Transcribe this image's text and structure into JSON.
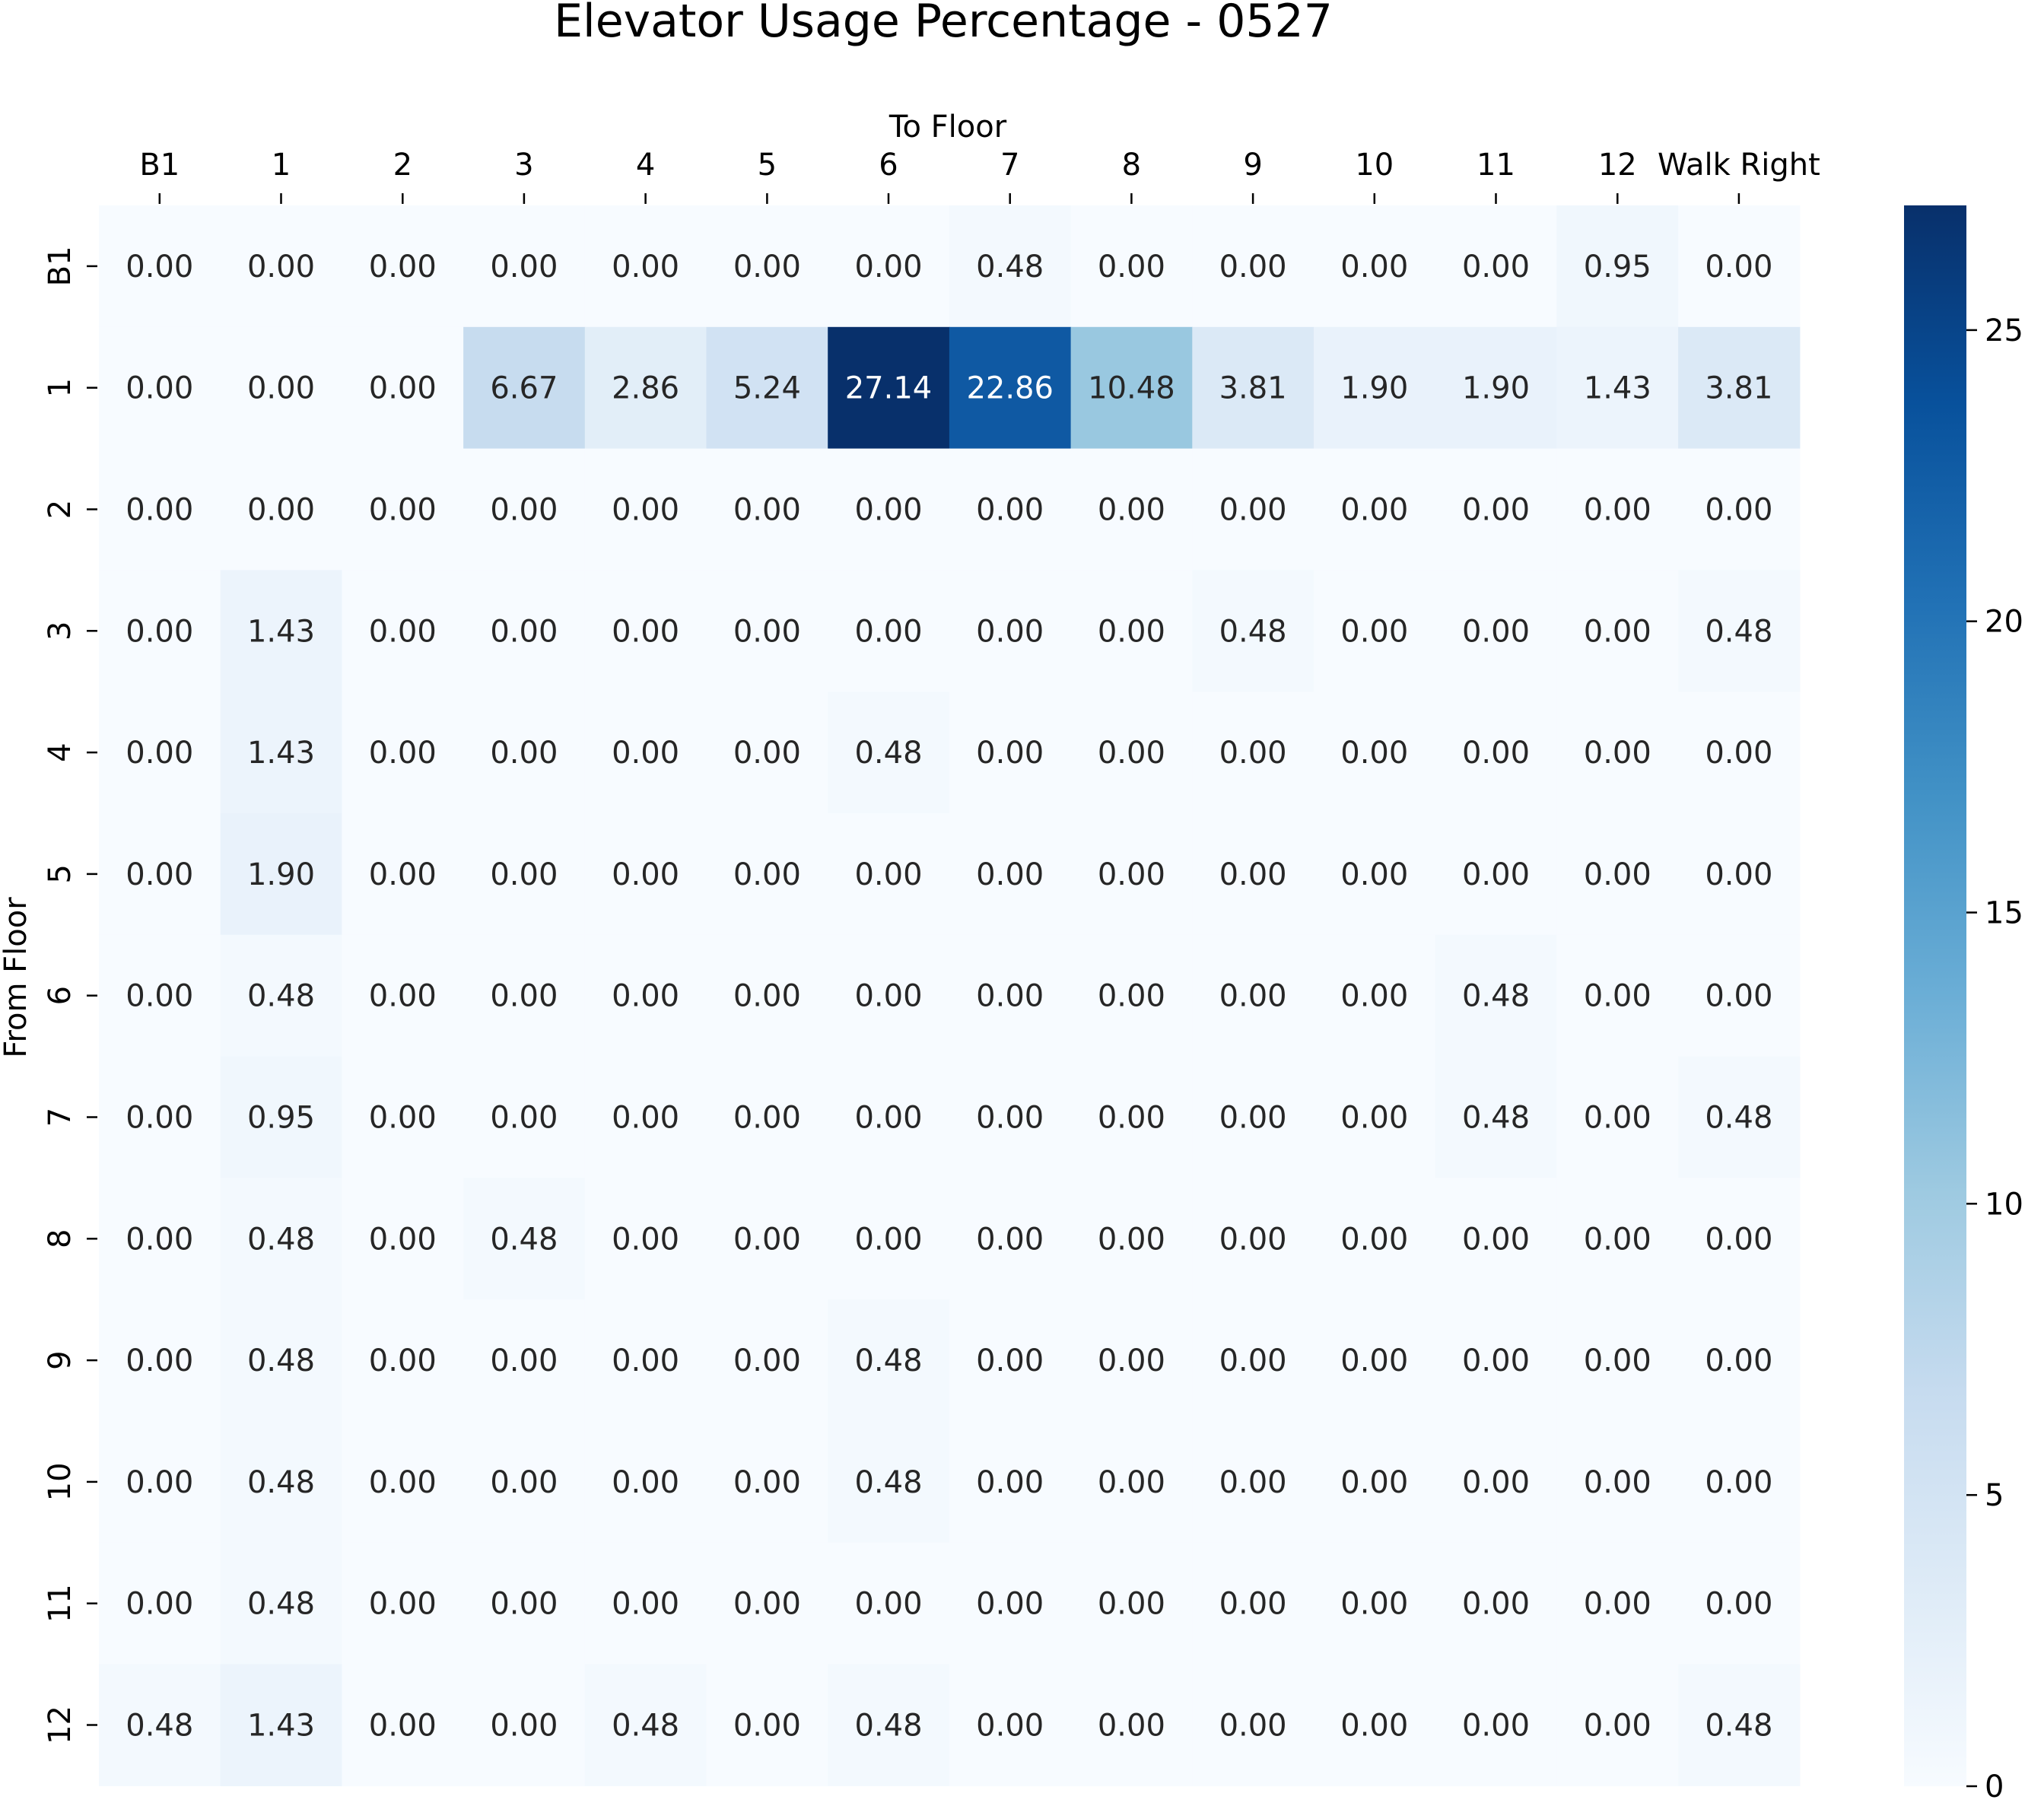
{
  "chart_data": {
    "type": "heatmap",
    "title": "Elevator Usage Percentage - 0527",
    "xlabel": "To Floor",
    "ylabel": "From Floor",
    "x_categories": [
      "B1",
      "1",
      "2",
      "3",
      "4",
      "5",
      "6",
      "7",
      "8",
      "9",
      "10",
      "11",
      "12",
      "Walk Right"
    ],
    "y_categories": [
      "B1",
      "1",
      "2",
      "3",
      "4",
      "5",
      "6",
      "7",
      "8",
      "9",
      "10",
      "11",
      "12"
    ],
    "values": [
      [
        0.0,
        0.0,
        0.0,
        0.0,
        0.0,
        0.0,
        0.0,
        0.48,
        0.0,
        0.0,
        0.0,
        0.0,
        0.95,
        0.0
      ],
      [
        0.0,
        0.0,
        0.0,
        6.67,
        2.86,
        5.24,
        27.14,
        22.86,
        10.48,
        3.81,
        1.9,
        1.9,
        1.43,
        3.81
      ],
      [
        0.0,
        0.0,
        0.0,
        0.0,
        0.0,
        0.0,
        0.0,
        0.0,
        0.0,
        0.0,
        0.0,
        0.0,
        0.0,
        0.0
      ],
      [
        0.0,
        1.43,
        0.0,
        0.0,
        0.0,
        0.0,
        0.0,
        0.0,
        0.0,
        0.48,
        0.0,
        0.0,
        0.0,
        0.48
      ],
      [
        0.0,
        1.43,
        0.0,
        0.0,
        0.0,
        0.0,
        0.48,
        0.0,
        0.0,
        0.0,
        0.0,
        0.0,
        0.0,
        0.0
      ],
      [
        0.0,
        1.9,
        0.0,
        0.0,
        0.0,
        0.0,
        0.0,
        0.0,
        0.0,
        0.0,
        0.0,
        0.0,
        0.0,
        0.0
      ],
      [
        0.0,
        0.48,
        0.0,
        0.0,
        0.0,
        0.0,
        0.0,
        0.0,
        0.0,
        0.0,
        0.0,
        0.48,
        0.0,
        0.0
      ],
      [
        0.0,
        0.95,
        0.0,
        0.0,
        0.0,
        0.0,
        0.0,
        0.0,
        0.0,
        0.0,
        0.0,
        0.48,
        0.0,
        0.48
      ],
      [
        0.0,
        0.48,
        0.0,
        0.48,
        0.0,
        0.0,
        0.0,
        0.0,
        0.0,
        0.0,
        0.0,
        0.0,
        0.0,
        0.0
      ],
      [
        0.0,
        0.48,
        0.0,
        0.0,
        0.0,
        0.0,
        0.48,
        0.0,
        0.0,
        0.0,
        0.0,
        0.0,
        0.0,
        0.0
      ],
      [
        0.0,
        0.48,
        0.0,
        0.0,
        0.0,
        0.0,
        0.48,
        0.0,
        0.0,
        0.0,
        0.0,
        0.0,
        0.0,
        0.0
      ],
      [
        0.0,
        0.48,
        0.0,
        0.0,
        0.0,
        0.0,
        0.0,
        0.0,
        0.0,
        0.0,
        0.0,
        0.0,
        0.0,
        0.0
      ],
      [
        0.48,
        1.43,
        0.0,
        0.0,
        0.48,
        0.0,
        0.48,
        0.0,
        0.0,
        0.0,
        0.0,
        0.0,
        0.0,
        0.48
      ]
    ],
    "value_format": "2 decimals",
    "colormap": "Blues",
    "color_range": [
      0,
      27.14
    ],
    "colorbar_ticks": [
      0,
      5,
      10,
      15,
      20,
      25
    ],
    "x_axis_position": "top",
    "grid": false
  }
}
